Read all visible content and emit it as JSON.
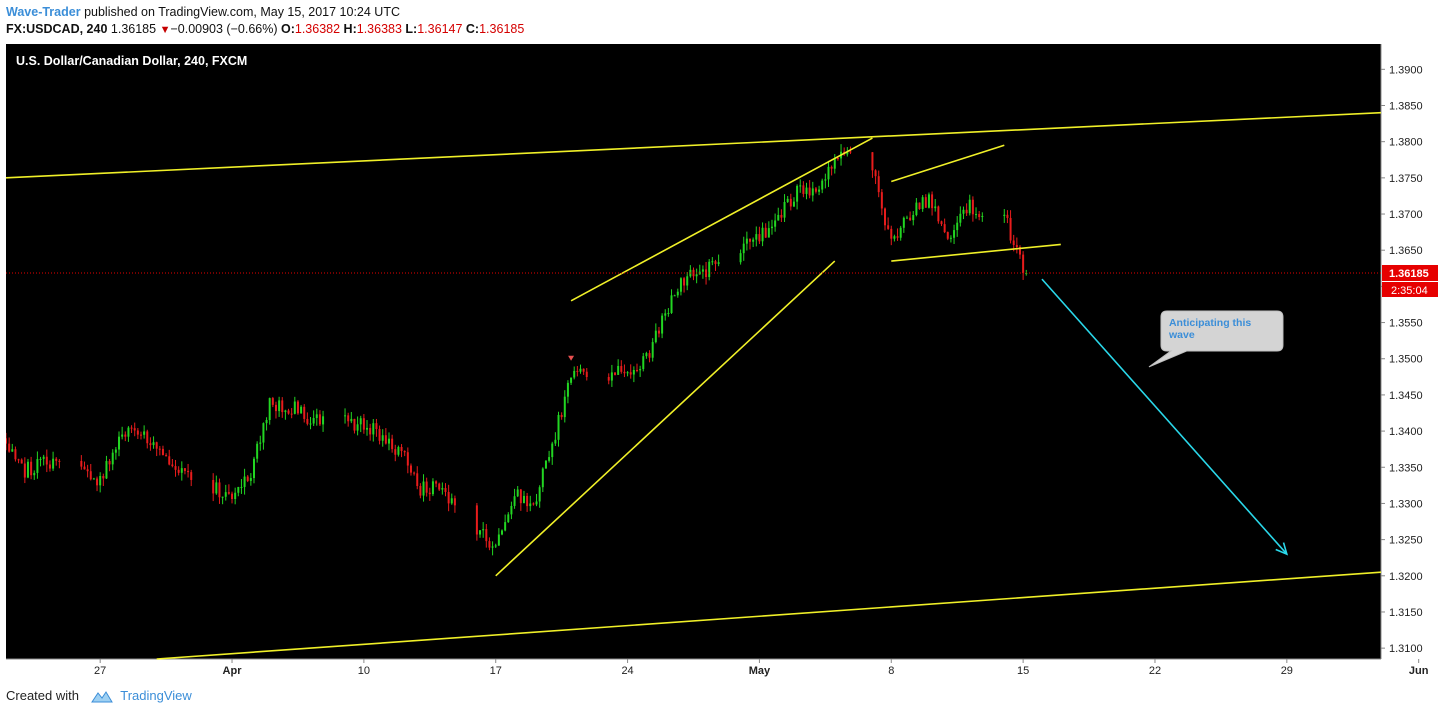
{
  "header": {
    "author": "Wave-Trader",
    "published_text": "published on TradingView.com, May 15, 2017 10:24 UTC",
    "symbol": "FX:USDCAD, 240",
    "last": "1.36185",
    "change": "−0.00903 (−0.66%)",
    "open_label": "O:",
    "open": "1.36382",
    "high_label": "H:",
    "high": "1.36383",
    "low_label": "L:",
    "low": "1.36147",
    "close_label": "C:",
    "close": "1.36185"
  },
  "footer": {
    "created_with": "Created with",
    "brand": "TradingView"
  },
  "colors": {
    "bg": "#000000",
    "up": "#22d622",
    "down": "#e81c1c",
    "trend": "#f0f028",
    "arrow": "#2ad8ea",
    "price_tag": "#e60000"
  },
  "chart_data": {
    "type": "candlestick",
    "title": "U.S. Dollar/Canadian Dollar, 240, FXCM",
    "ylim": [
      1.3085,
      1.3935
    ],
    "y_ticks": [
      1.31,
      1.315,
      1.32,
      1.325,
      1.33,
      1.335,
      1.34,
      1.345,
      1.35,
      1.355,
      1.36,
      1.365,
      1.37,
      1.375,
      1.38,
      1.385,
      1.39
    ],
    "y_tick_labels": [
      "1.3100",
      "1.3150",
      "1.3200",
      "1.3250",
      "1.3300",
      "1.3350",
      "1.3400",
      "1.3450",
      "1.3500",
      "1.3550",
      "1.3600",
      "1.3650",
      "1.3700",
      "1.3750",
      "1.3800",
      "1.3850",
      "1.3900"
    ],
    "x_unit": "day",
    "x_range": [
      "2017-03-22",
      "2017-06-03"
    ],
    "x_ticks": [
      {
        "date": "2017-03-27",
        "label": "27",
        "bold": false
      },
      {
        "date": "2017-04-03",
        "label": "Apr",
        "bold": true
      },
      {
        "date": "2017-04-10",
        "label": "10",
        "bold": false
      },
      {
        "date": "2017-04-17",
        "label": "17",
        "bold": false
      },
      {
        "date": "2017-04-24",
        "label": "24",
        "bold": false
      },
      {
        "date": "2017-05-01",
        "label": "May",
        "bold": true
      },
      {
        "date": "2017-05-08",
        "label": "8",
        "bold": false
      },
      {
        "date": "2017-05-15",
        "label": "15",
        "bold": false
      },
      {
        "date": "2017-05-22",
        "label": "22",
        "bold": false
      },
      {
        "date": "2017-05-29",
        "label": "29",
        "bold": false
      },
      {
        "date": "2017-06-05",
        "label": "Jun",
        "bold": true
      }
    ],
    "last_price": {
      "value": 1.36185,
      "label": "1.36185",
      "countdown": "2:35:04"
    },
    "path_anchors": [
      [
        "2017-03-22",
        1.339
      ],
      [
        "2017-03-23",
        1.3345
      ],
      [
        "2017-03-24",
        1.336
      ],
      [
        "2017-03-27",
        1.333
      ],
      [
        "2017-03-28",
        1.3385
      ],
      [
        "2017-03-29",
        1.3405
      ],
      [
        "2017-03-30",
        1.337
      ],
      [
        "2017-03-31",
        1.3345
      ],
      [
        "2017-04-03",
        1.331
      ],
      [
        "2017-04-04",
        1.334
      ],
      [
        "2017-04-05",
        1.344
      ],
      [
        "2017-04-06",
        1.3435
      ],
      [
        "2017-04-07",
        1.342
      ],
      [
        "2017-04-10",
        1.341
      ],
      [
        "2017-04-11",
        1.339
      ],
      [
        "2017-04-12",
        1.337
      ],
      [
        "2017-04-13",
        1.332
      ],
      [
        "2017-04-14",
        1.3325
      ],
      [
        "2017-04-17",
        1.3235
      ],
      [
        "2017-04-18",
        1.3315
      ],
      [
        "2017-04-19",
        1.3295
      ],
      [
        "2017-04-20",
        1.338
      ],
      [
        "2017-04-21",
        1.348
      ],
      [
        "2017-04-24",
        1.348
      ],
      [
        "2017-04-25",
        1.35
      ],
      [
        "2017-04-26",
        1.356
      ],
      [
        "2017-04-27",
        1.361
      ],
      [
        "2017-04-28",
        1.362
      ],
      [
        "2017-05-01",
        1.3665
      ],
      [
        "2017-05-02",
        1.3695
      ],
      [
        "2017-05-03",
        1.373
      ],
      [
        "2017-05-04",
        1.3725
      ],
      [
        "2017-05-05",
        1.378
      ],
      [
        "2017-05-07",
        1.377
      ],
      [
        "2017-05-08",
        1.3655
      ],
      [
        "2017-05-09",
        1.37
      ],
      [
        "2017-05-10",
        1.372
      ],
      [
        "2017-05-11",
        1.3665
      ],
      [
        "2017-05-12",
        1.371
      ],
      [
        "2017-05-14",
        1.37
      ],
      [
        "2017-05-15",
        1.362
      ]
    ],
    "trend_lines": [
      {
        "from": [
          "2017-03-22",
          1.375
        ],
        "to": [
          "2017-06-03",
          1.384
        ]
      },
      {
        "from": [
          "2017-03-30",
          1.3085
        ],
        "to": [
          "2017-06-03",
          1.3205
        ]
      },
      {
        "from": [
          "2017-04-21",
          1.358
        ],
        "to": [
          "2017-05-07",
          1.3805
        ]
      },
      {
        "from": [
          "2017-04-17",
          1.32
        ],
        "to": [
          "2017-05-05",
          1.3635
        ]
      },
      {
        "from": [
          "2017-05-08",
          1.3745
        ],
        "to": [
          "2017-05-14",
          1.3795
        ]
      },
      {
        "from": [
          "2017-05-08",
          1.3635
        ],
        "to": [
          "2017-05-17",
          1.3658
        ]
      }
    ],
    "forecast_arrow": {
      "from": [
        "2017-05-16",
        1.361
      ],
      "to": [
        "2017-05-29",
        1.323
      ]
    },
    "signal_marker": [
      "2017-04-21",
      1.35
    ],
    "annotations": [
      {
        "text": "Anticipating this wave",
        "x": "2017-05-22",
        "y": 1.3555
      }
    ]
  }
}
